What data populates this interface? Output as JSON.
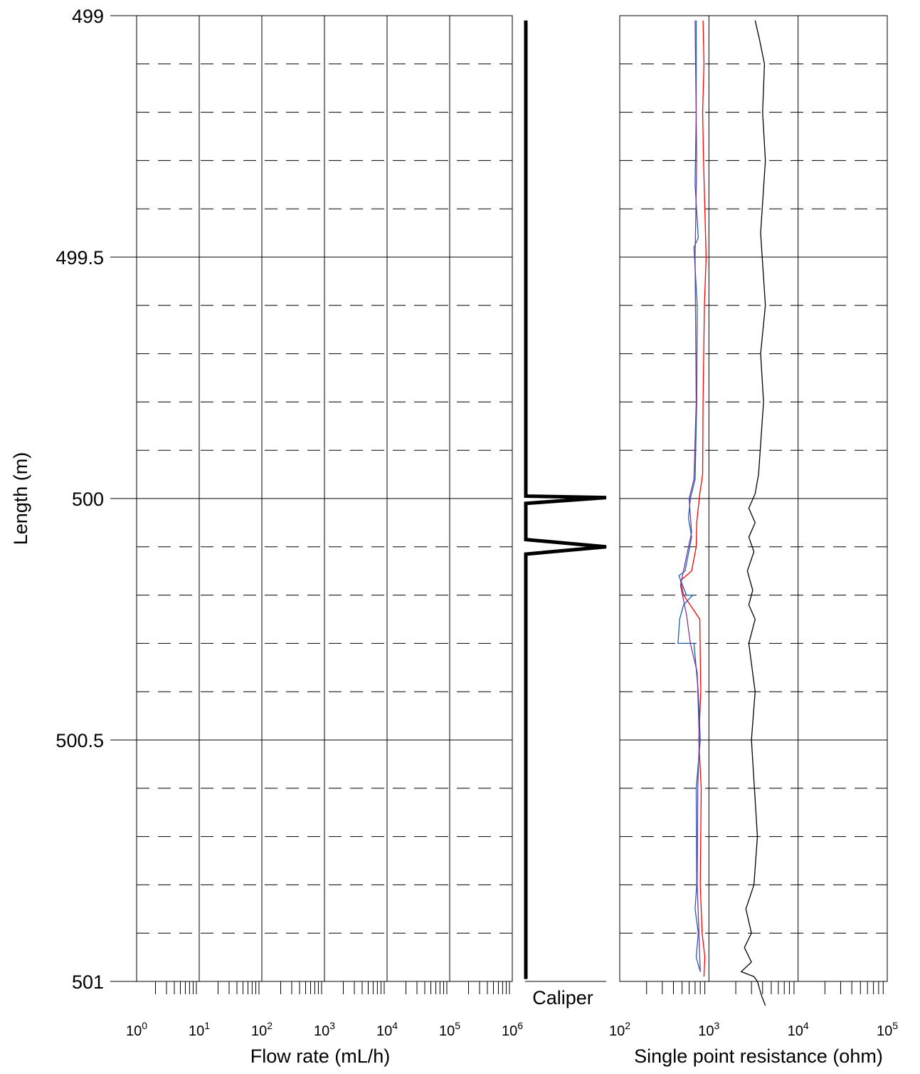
{
  "chart_data": [
    {
      "type": "line",
      "panel": "flow-rate",
      "xlabel": "Flow rate (mL/h)",
      "ylabel": "Length (m)",
      "xscale": "log",
      "xlim_exp": [
        0,
        6
      ],
      "xtick_exponents": [
        "0",
        "1",
        "2",
        "3",
        "4",
        "5",
        "6"
      ],
      "ylim": [
        499,
        501
      ],
      "y_inverted": true,
      "ytick_labels": [
        "499",
        "499.5",
        "500",
        "500.5",
        "501"
      ],
      "grid": "solid major, dashed minor",
      "series": []
    },
    {
      "type": "line",
      "panel": "caliper",
      "xlabel": "Caliper",
      "ylim": [
        499,
        501
      ],
      "y_inverted": true,
      "series": [
        {
          "color": "#000000",
          "points": [
            [
              0,
              499.01
            ],
            [
              0,
              499.995
            ],
            [
              1,
              499.998
            ],
            [
              0,
              500.01
            ],
            [
              0,
              500.085
            ],
            [
              1,
              500.1
            ],
            [
              0,
              500.115
            ],
            [
              0,
              500.995
            ]
          ]
        }
      ]
    },
    {
      "type": "line",
      "panel": "resistance",
      "xlabel": "Single point resistance (ohm)",
      "xscale": "log",
      "xlim_exp": [
        2,
        5
      ],
      "xtick_exponents": [
        "2",
        "3",
        "4",
        "5"
      ],
      "ylim": [
        499,
        501
      ],
      "y_inverted": true,
      "grid": "solid major, dashed minor",
      "series": [
        {
          "color": "#ff0000",
          "points": [
            [
              860,
              499.01
            ],
            [
              880,
              499.1
            ],
            [
              850,
              499.2
            ],
            [
              870,
              499.3
            ],
            [
              900,
              499.4
            ],
            [
              930,
              499.5
            ],
            [
              890,
              499.6
            ],
            [
              860,
              499.8
            ],
            [
              850,
              499.95
            ],
            [
              790,
              499.99
            ],
            [
              730,
              500.05
            ],
            [
              720,
              500.1
            ],
            [
              640,
              500.15
            ],
            [
              480,
              500.17
            ],
            [
              520,
              500.2
            ],
            [
              790,
              500.25
            ],
            [
              810,
              500.4
            ],
            [
              770,
              500.5
            ],
            [
              820,
              500.6
            ],
            [
              800,
              500.8
            ],
            [
              840,
              500.9
            ],
            [
              900,
              500.95
            ],
            [
              880,
              500.99
            ]
          ]
        },
        {
          "color": "#1a5fb4",
          "points": [
            [
              720,
              499.01
            ],
            [
              720,
              499.2
            ],
            [
              700,
              499.35
            ],
            [
              760,
              499.46
            ],
            [
              680,
              499.48
            ],
            [
              740,
              499.6
            ],
            [
              730,
              499.8
            ],
            [
              700,
              499.96
            ],
            [
              620,
              500.0
            ],
            [
              590,
              500.04
            ],
            [
              640,
              500.08
            ],
            [
              540,
              500.15
            ],
            [
              460,
              500.16
            ],
            [
              560,
              500.2
            ],
            [
              660,
              500.2
            ],
            [
              520,
              500.22
            ],
            [
              470,
              500.25
            ],
            [
              450,
              500.3
            ],
            [
              680,
              500.3
            ],
            [
              760,
              500.4
            ],
            [
              800,
              500.5
            ],
            [
              720,
              500.6
            ],
            [
              730,
              500.8
            ],
            [
              700,
              500.85
            ],
            [
              760,
              500.9
            ],
            [
              720,
              500.95
            ],
            [
              800,
              500.98
            ]
          ]
        },
        {
          "color": "#7a3a9a",
          "points": [
            [
              700,
              499.01
            ],
            [
              730,
              499.3
            ],
            [
              700,
              499.5
            ],
            [
              720,
              499.8
            ],
            [
              680,
              499.96
            ],
            [
              600,
              500.0
            ],
            [
              640,
              500.07
            ],
            [
              560,
              500.12
            ],
            [
              480,
              500.18
            ],
            [
              560,
              500.24
            ],
            [
              620,
              500.3
            ],
            [
              740,
              500.36
            ],
            [
              780,
              500.5
            ],
            [
              750,
              500.6
            ],
            [
              740,
              500.8
            ],
            [
              800,
              500.98
            ]
          ]
        },
        {
          "color": "#000000",
          "points": [
            [
              3300,
              499.01
            ],
            [
              3700,
              499.05
            ],
            [
              4200,
              499.1
            ],
            [
              4000,
              499.2
            ],
            [
              4300,
              499.3
            ],
            [
              3800,
              499.45
            ],
            [
              4300,
              499.6
            ],
            [
              3800,
              499.7
            ],
            [
              4100,
              499.8
            ],
            [
              3600,
              499.95
            ],
            [
              3300,
              499.99
            ],
            [
              2800,
              500.02
            ],
            [
              3300,
              500.05
            ],
            [
              2800,
              500.08
            ],
            [
              3200,
              500.11
            ],
            [
              2700,
              500.15
            ],
            [
              3100,
              500.19
            ],
            [
              2800,
              500.22
            ],
            [
              3300,
              500.25
            ],
            [
              2800,
              500.3
            ],
            [
              3300,
              500.4
            ],
            [
              3000,
              500.5
            ],
            [
              3500,
              500.7
            ],
            [
              3200,
              500.8
            ],
            [
              2600,
              500.85
            ],
            [
              3000,
              500.9
            ],
            [
              2500,
              500.93
            ],
            [
              3000,
              500.96
            ],
            [
              2300,
              500.98
            ],
            [
              3200,
              500.99
            ],
            [
              3500,
              501.0
            ],
            [
              3900,
              501.03
            ],
            [
              4300,
              501.05
            ]
          ]
        }
      ]
    }
  ]
}
